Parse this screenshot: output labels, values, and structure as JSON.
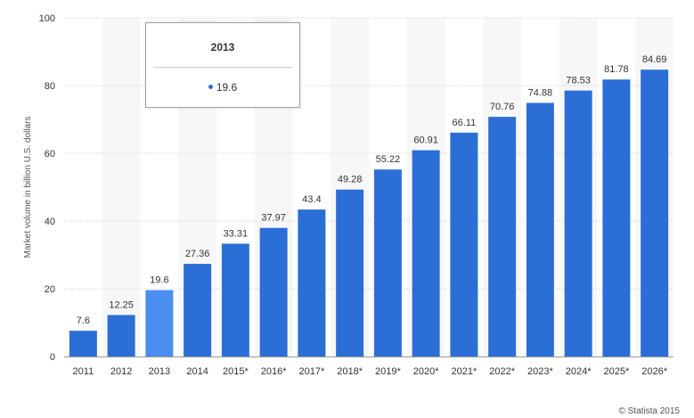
{
  "chart_data": {
    "type": "bar",
    "categories": [
      "2011",
      "2012",
      "2013",
      "2014",
      "2015*",
      "2016*",
      "2017*",
      "2018*",
      "2019*",
      "2020*",
      "2021*",
      "2022*",
      "2023*",
      "2024*",
      "2025*",
      "2026*"
    ],
    "values": [
      7.6,
      12.25,
      19.6,
      27.36,
      33.31,
      37.97,
      43.4,
      49.28,
      55.22,
      60.91,
      66.11,
      70.76,
      74.88,
      78.53,
      81.78,
      84.69
    ],
    "value_labels": [
      "7.6",
      "12.25",
      "19.6",
      "27.36",
      "33.31",
      "37.97",
      "43.4",
      "49.28",
      "55.22",
      "60.91",
      "66.11",
      "70.76",
      "74.88",
      "78.53",
      "81.78",
      "84.69"
    ],
    "ylabel": "Market volume in billion U.S. dollars",
    "ylim": [
      0,
      100
    ],
    "yticks": [
      "0",
      "20",
      "40",
      "60",
      "80",
      "100"
    ],
    "grid": true,
    "highlighted_index": 2,
    "colors": {
      "bar": "#2b6fd6",
      "bar_highlight": "#4a8ef0",
      "band": "#f7f7f7",
      "grid": "#cccccc"
    }
  },
  "tooltip": {
    "title": "2013",
    "value": "19.6"
  },
  "credit": "© Statista 2015"
}
